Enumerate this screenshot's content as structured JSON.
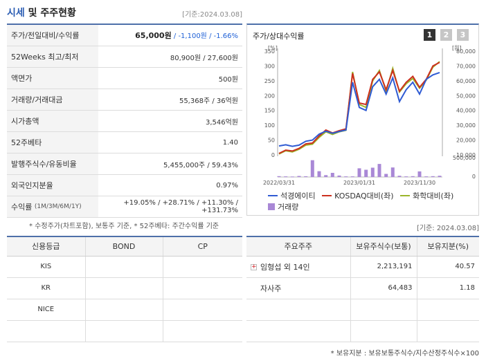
{
  "header": {
    "title": "시세",
    "title_sub": "및 주주현황",
    "date": "[기준:2024.03.08]"
  },
  "summary": {
    "price_label": "주가/전일대비/수익률",
    "price": "65,000원",
    "change": " / -1,100원",
    "change_pct": " / -1.66%",
    "w52_label": "52Weeks 최고/최저",
    "w52_value": "80,900원 / 27,600원",
    "face_label": "액면가",
    "face_value": "500원",
    "volume_label": "거래량/거래대금",
    "volume_value": "55,368주 / 36억원",
    "mcap_label": "시가총액",
    "mcap_value": "3,546억원",
    "beta_label": "52주베타",
    "beta_value": "1.40",
    "shares_label": "발행주식수/유동비율",
    "shares_value": "5,455,000주 / 59.43%",
    "foreign_label": "외국인지분율",
    "foreign_value": "0.97%",
    "return_label": "수익률",
    "return_periods": "(1M/3M/6M/1Y)",
    "return_1m": "+19.05%",
    "return_3m": " / +28.71%",
    "return_6m": " / +11.30%",
    "return_1y": " / +131.73%"
  },
  "summary_note": "* 수정주가(차트포함), 보통주 기준, * 52주베타: 주간수익률 기준",
  "chart_panel": {
    "title": "주가/상대수익률",
    "pages": [
      "1",
      "2",
      "3"
    ],
    "active_page": "1"
  },
  "legend": {
    "series1": "석경에이티",
    "series2": "KOSDAQ대비(좌)",
    "series3": "화학대비(좌)",
    "series4": "거래량"
  },
  "chart_data": {
    "type": "line",
    "left_axis_unit": "[%]",
    "right_axis_unit": "[원]",
    "left_ticks": [
      "0",
      "50",
      "100",
      "150",
      "200",
      "250",
      "300",
      "350"
    ],
    "right_ticks": [
      "10,000",
      "20,000",
      "30,000",
      "40,000",
      "50,000",
      "60,000",
      "70,000",
      "80,000"
    ],
    "volume_ticks": [
      "500,000",
      "0"
    ],
    "x_tick_labels": [
      "2022/03/31",
      "2023/01/31",
      "2023/11/30"
    ],
    "x": [
      0,
      1,
      2,
      3,
      4,
      5,
      6,
      7,
      8,
      9,
      10,
      11,
      12,
      13,
      14,
      15,
      16,
      17,
      18,
      19,
      20,
      21,
      22,
      23,
      24
    ],
    "series": [
      {
        "name": "석경에이티",
        "color": "#2f5bd3",
        "axis": "left",
        "values": [
          30,
          34,
          29,
          33,
          46,
          50,
          70,
          80,
          73,
          79,
          84,
          245,
          160,
          150,
          230,
          255,
          205,
          260,
          180,
          220,
          245,
          205,
          255,
          270,
          278
        ]
      },
      {
        "name": "KOSDAQ대비(좌)",
        "color": "#cc2f1e",
        "axis": "left",
        "values": [
          5,
          16,
          13,
          22,
          37,
          40,
          64,
          84,
          74,
          82,
          88,
          275,
          175,
          170,
          255,
          280,
          220,
          285,
          215,
          245,
          265,
          228,
          255,
          300,
          312
        ]
      },
      {
        "name": "화학대비(좌)",
        "color": "#9bb52a",
        "axis": "left",
        "values": [
          3,
          14,
          10,
          19,
          33,
          36,
          59,
          78,
          69,
          78,
          83,
          280,
          170,
          160,
          250,
          285,
          215,
          292,
          212,
          240,
          258,
          225,
          252,
          296,
          315
        ]
      },
      {
        "name": "거래량",
        "color": "#a988d6",
        "axis": "volume",
        "values": [
          40000,
          30000,
          25000,
          50000,
          35000,
          810000,
          280000,
          90000,
          200000,
          70000,
          30000,
          30000,
          420000,
          350000,
          450000,
          630000,
          150000,
          460000,
          60000,
          30000,
          40000,
          270000,
          30000,
          40000,
          60000
        ]
      }
    ],
    "ylim_left": [
      0,
      350
    ],
    "ylim_right": [
      10000,
      80000
    ],
    "ylim_volume": [
      0,
      1000000
    ]
  },
  "credit": {
    "date": "[기준: 2024.03.08]",
    "headers": [
      "신용등급",
      "BOND",
      "CP"
    ],
    "rows": [
      [
        "KIS",
        "",
        ""
      ],
      [
        "KR",
        "",
        ""
      ],
      [
        "NICE",
        "",
        ""
      ],
      [
        "",
        "",
        ""
      ]
    ]
  },
  "holders": {
    "headers": [
      "주요주주",
      "보유주식수(보통)",
      "보유지분(%)"
    ],
    "rows": [
      [
        "임형섭 외 14인",
        "2,213,191",
        "40.57"
      ],
      [
        "자사주",
        "64,483",
        "1.18"
      ],
      [
        "",
        "",
        ""
      ],
      [
        "",
        "",
        ""
      ]
    ]
  },
  "holders_note": "* 보유지분 : 보유보통주식수/지수산정주식수×100"
}
